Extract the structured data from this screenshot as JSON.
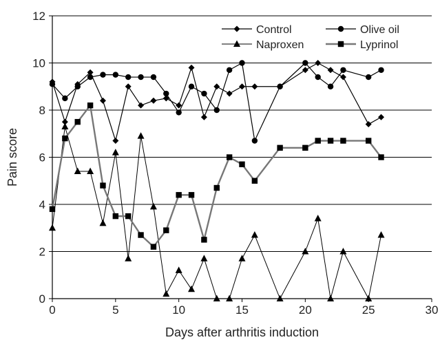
{
  "chart_data": {
    "type": "line",
    "title": "",
    "xlabel": "Days after arthritis induction",
    "ylabel": "Pain score",
    "xlim": [
      0,
      30
    ],
    "ylim": [
      0,
      12
    ],
    "xticks": [
      0,
      5,
      10,
      15,
      20,
      25,
      30
    ],
    "yticks": [
      0,
      2,
      4,
      6,
      8,
      10,
      12
    ],
    "grid": "horizontal",
    "legend_position": "top-right",
    "series": [
      {
        "name": "Control",
        "marker": "diamond",
        "color": "#000000",
        "x": [
          0,
          1,
          2,
          3,
          4,
          5,
          6,
          7,
          8,
          9,
          10,
          11,
          12,
          13,
          14,
          15,
          16,
          18,
          20,
          21,
          22,
          23,
          25,
          26
        ],
        "y": [
          9.2,
          7.5,
          9.1,
          9.6,
          8.4,
          6.7,
          9.0,
          8.2,
          8.4,
          8.5,
          8.2,
          9.8,
          7.7,
          9.0,
          8.7,
          9.0,
          9.0,
          9.0,
          9.7,
          10.0,
          9.7,
          9.4,
          7.4,
          7.7
        ]
      },
      {
        "name": "Olive oil",
        "marker": "circle",
        "color": "#000000",
        "x": [
          0,
          1,
          2,
          3,
          4,
          5,
          6,
          7,
          8,
          9,
          10,
          11,
          12,
          13,
          14,
          15,
          16,
          18,
          20,
          21,
          22,
          23,
          25,
          26
        ],
        "y": [
          9.1,
          8.5,
          9.0,
          9.4,
          9.5,
          9.5,
          9.4,
          9.4,
          9.4,
          8.7,
          7.9,
          9.0,
          8.7,
          8.0,
          9.7,
          10.0,
          6.7,
          9.0,
          10.0,
          9.4,
          9.0,
          9.7,
          9.4,
          9.7
        ]
      },
      {
        "name": "Naproxen",
        "marker": "triangle",
        "color": "#000000",
        "x": [
          0,
          1,
          2,
          3,
          4,
          5,
          6,
          7,
          8,
          9,
          10,
          11,
          12,
          13,
          14,
          15,
          16,
          18,
          20,
          21,
          22,
          23,
          25,
          26
        ],
        "y": [
          3.0,
          7.3,
          5.4,
          5.4,
          3.2,
          6.2,
          1.7,
          6.9,
          3.9,
          0.2,
          1.2,
          0.4,
          1.7,
          0.0,
          0.0,
          1.7,
          2.7,
          0.0,
          2.0,
          3.4,
          0.0,
          2.0,
          0.0,
          2.7
        ]
      },
      {
        "name": "Lyprinol",
        "marker": "square",
        "color": "#777777",
        "x": [
          0,
          1,
          2,
          3,
          4,
          5,
          6,
          7,
          8,
          9,
          10,
          11,
          12,
          13,
          14,
          15,
          16,
          18,
          20,
          21,
          22,
          23,
          25,
          26
        ],
        "y": [
          3.8,
          6.8,
          7.5,
          8.2,
          4.8,
          3.5,
          3.5,
          2.7,
          2.2,
          2.9,
          4.4,
          4.4,
          2.5,
          4.7,
          6.0,
          5.7,
          5.0,
          6.4,
          6.4,
          6.7,
          6.7,
          6.7,
          6.7,
          6.0
        ]
      }
    ]
  }
}
